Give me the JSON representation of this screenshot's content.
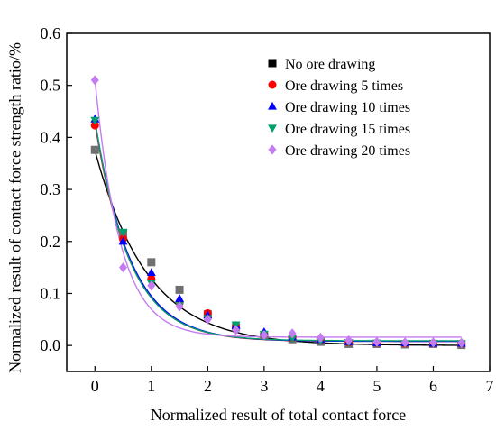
{
  "chart_data": {
    "type": "scatter",
    "title": "",
    "xlabel": "Normalized result of total contact force",
    "ylabel": "Normalized result of contact force strength ratio/%",
    "xlim": [
      -0.5,
      7
    ],
    "ylim": [
      -0.05,
      0.6
    ],
    "xticks": [
      0,
      1,
      2,
      3,
      4,
      5,
      6,
      7
    ],
    "yticks": [
      0.0,
      0.1,
      0.2,
      0.3,
      0.4,
      0.5,
      0.6
    ],
    "xtick_labels": [
      "0",
      "1",
      "2",
      "3",
      "4",
      "5",
      "6",
      "7"
    ],
    "ytick_labels": [
      "0.0",
      "0.1",
      "0.2",
      "0.3",
      "0.4",
      "0.5",
      "0.6"
    ],
    "grid": false,
    "legend_position": "top-right",
    "series": [
      {
        "name": "No ore drawing",
        "marker": "square",
        "color": "#000000",
        "point_color": "#707070",
        "x": [
          0,
          0.5,
          1,
          1.5,
          2,
          2.5,
          3,
          3.5,
          4,
          4.5,
          5,
          5.5,
          6,
          6.5
        ],
        "y": [
          0.376,
          0.215,
          0.16,
          0.107,
          0.06,
          0.035,
          0.02,
          0.012,
          0.007,
          0.003,
          0.003,
          0.002,
          0.003,
          0.001
        ],
        "fit": {
          "y0": 0.0,
          "A": 0.375,
          "t": 0.93
        }
      },
      {
        "name": "Ore drawing 5 times",
        "marker": "circle",
        "color": "#ff0000",
        "x": [
          0,
          0.5,
          1,
          1.5,
          2,
          2.5,
          3,
          3.5,
          4,
          4.5,
          5,
          5.5,
          6,
          6.5
        ],
        "y": [
          0.423,
          0.205,
          0.128,
          0.082,
          0.062,
          0.036,
          0.022,
          0.015,
          0.01,
          0.006,
          0.005,
          0.004,
          0.004,
          0.004
        ],
        "fit": {
          "y0": 0.008,
          "A": 0.42,
          "t": 0.62
        }
      },
      {
        "name": "Ore drawing 10 times",
        "marker": "triangle-up",
        "color": "#0000ff",
        "x": [
          0,
          0.5,
          1,
          1.5,
          2,
          2.5,
          3,
          3.5,
          4,
          4.5,
          5,
          5.5,
          6,
          6.5
        ],
        "y": [
          0.435,
          0.2,
          0.14,
          0.09,
          0.058,
          0.038,
          0.026,
          0.016,
          0.011,
          0.007,
          0.005,
          0.005,
          0.004,
          0.004
        ],
        "fit": {
          "y0": 0.008,
          "A": 0.425,
          "t": 0.63
        }
      },
      {
        "name": "Ore drawing 15 times",
        "marker": "triangle-down",
        "color": "#00a06c",
        "x": [
          0,
          0.5,
          1,
          1.5,
          2,
          2.5,
          3,
          3.5,
          4,
          4.5,
          5,
          5.5,
          6,
          6.5
        ],
        "y": [
          0.433,
          0.218,
          0.12,
          0.077,
          0.052,
          0.04,
          0.022,
          0.014,
          0.009,
          0.006,
          0.005,
          0.004,
          0.004,
          0.004
        ],
        "fit": {
          "y0": 0.009,
          "A": 0.425,
          "t": 0.61
        }
      },
      {
        "name": "Ore drawing 20 times",
        "marker": "diamond",
        "color": "#c47cf0",
        "x": [
          0,
          0.5,
          1,
          1.5,
          2,
          2.5,
          3,
          3.5,
          4,
          4.5,
          5,
          5.5,
          6,
          6.5
        ],
        "y": [
          0.51,
          0.15,
          0.115,
          0.075,
          0.05,
          0.03,
          0.02,
          0.023,
          0.015,
          0.01,
          0.007,
          0.006,
          0.006,
          0.005
        ],
        "fit": {
          "y0": 0.016,
          "A": 0.495,
          "t": 0.45
        }
      }
    ]
  }
}
